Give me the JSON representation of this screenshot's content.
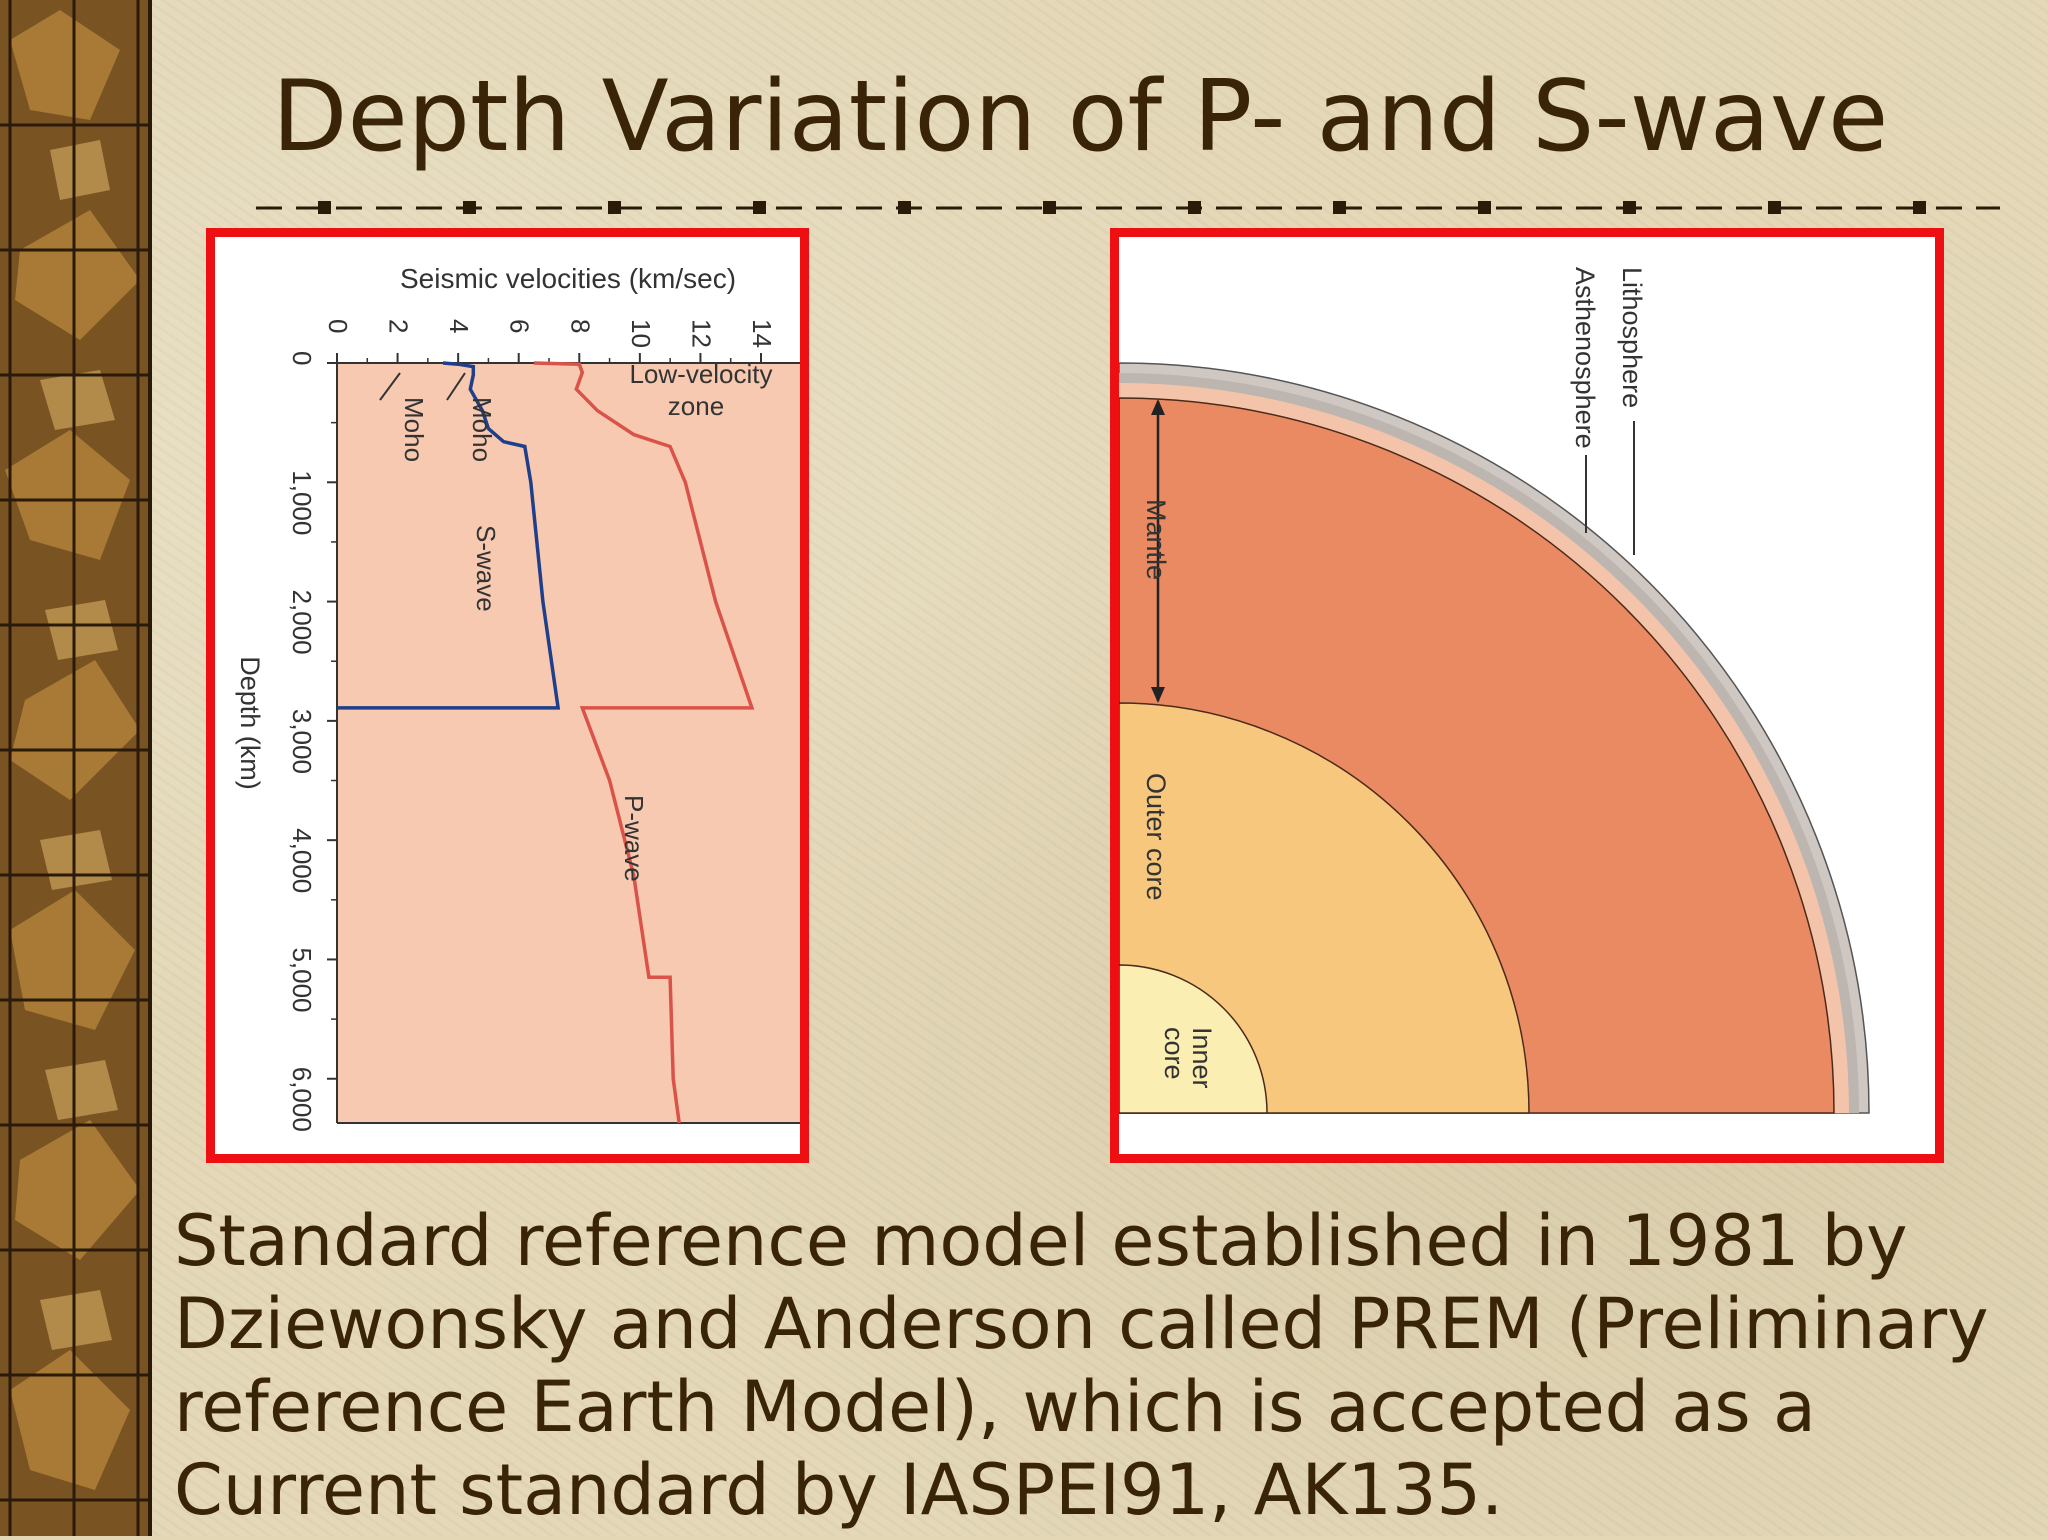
{
  "slide": {
    "title": "Depth Variation of P- and S-wave",
    "caption": "Standard reference model established in 1981 by Dziewonsky and Anderson called PREM (Preliminary reference Earth Model), which is accepted as a Current standard by IASPEI91, AK135."
  },
  "colors": {
    "background": "#e3d7b6",
    "text": "#3a2408",
    "panel_border": "#ee0f12",
    "p_wave": "#d9534a",
    "s_wave": "#1f3f8a",
    "mantle": "#ea8a62",
    "outer_core": "#f6c77c",
    "inner_core": "#fbeeb2",
    "crust": "#f4c4aa"
  },
  "velocity_chart": {
    "axis_label_velocity": "Seismic velocities (km/sec)",
    "axis_label_depth": "Depth (km)",
    "velocity_ticks": [
      "0",
      "2",
      "4",
      "6",
      "8",
      "10",
      "12",
      "14"
    ],
    "depth_ticks": [
      "0",
      "1,000",
      "2,000",
      "3,000",
      "4,000",
      "5,000",
      "6,000"
    ],
    "labels": {
      "moho_s": "Moho",
      "moho_p": "Moho",
      "lvz_line1": "Low-velocity",
      "lvz_line2": "zone",
      "s_wave": "S-wave",
      "p_wave": "P-wave"
    }
  },
  "chart_data": {
    "type": "line",
    "title": "",
    "xlabel": "Seismic velocities (km/sec)",
    "ylabel": "Depth (km)",
    "xlim": [
      0,
      14
    ],
    "ylim": [
      0,
      6371
    ],
    "series": [
      {
        "name": "S-wave",
        "points": [
          [
            3.5,
            0
          ],
          [
            4.0,
            10
          ],
          [
            4.5,
            30
          ],
          [
            4.5,
            100
          ],
          [
            4.4,
            220
          ],
          [
            4.8,
            400
          ],
          [
            5.0,
            550
          ],
          [
            5.5,
            660
          ],
          [
            6.2,
            700
          ],
          [
            6.4,
            1000
          ],
          [
            6.8,
            2000
          ],
          [
            7.3,
            2891
          ],
          [
            0,
            2891
          ]
        ]
      },
      {
        "name": "P-wave",
        "points": [
          [
            6.5,
            0
          ],
          [
            8.0,
            10
          ],
          [
            8.1,
            80
          ],
          [
            7.9,
            220
          ],
          [
            8.6,
            400
          ],
          [
            9.8,
            600
          ],
          [
            11.0,
            700
          ],
          [
            11.5,
            1000
          ],
          [
            12.5,
            2000
          ],
          [
            13.7,
            2891
          ],
          [
            8.1,
            2891
          ],
          [
            9.0,
            3500
          ],
          [
            9.8,
            4300
          ],
          [
            10.3,
            5150
          ],
          [
            11.0,
            5150
          ],
          [
            11.1,
            6000
          ],
          [
            11.3,
            6371
          ]
        ]
      }
    ]
  },
  "earth_diagram": {
    "labels": {
      "lithosphere": "Lithosphere",
      "asthenosphere": "Asthenosphere",
      "mantle": "Mantle",
      "outer_core": "Outer core",
      "inner_core_line1": "Inner",
      "inner_core_line2": "core"
    }
  }
}
